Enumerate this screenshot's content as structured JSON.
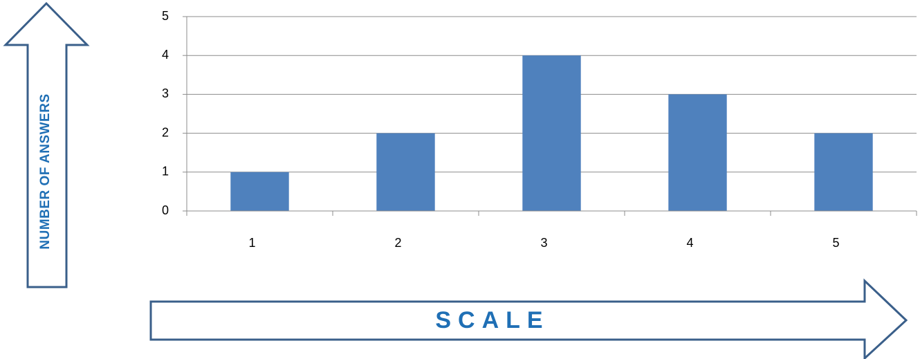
{
  "chart_data": {
    "type": "bar",
    "categories": [
      "1",
      "2",
      "3",
      "4",
      "5"
    ],
    "values": [
      1,
      2,
      4,
      3,
      2
    ],
    "title": "",
    "xlabel": "SCALE",
    "ylabel": "NUMBER OF ANSWERS",
    "ylim": [
      0,
      5
    ],
    "y_ticks": [
      "0",
      "1",
      "2",
      "3",
      "4",
      "5"
    ],
    "grid": true,
    "legend": "none"
  },
  "colors": {
    "bar": "#4f81bd",
    "arrow_outline": "#3a5f8a",
    "label_text": "#1f6fb5",
    "gridline": "#8c8c8c",
    "axis": "#8c8c8c"
  }
}
